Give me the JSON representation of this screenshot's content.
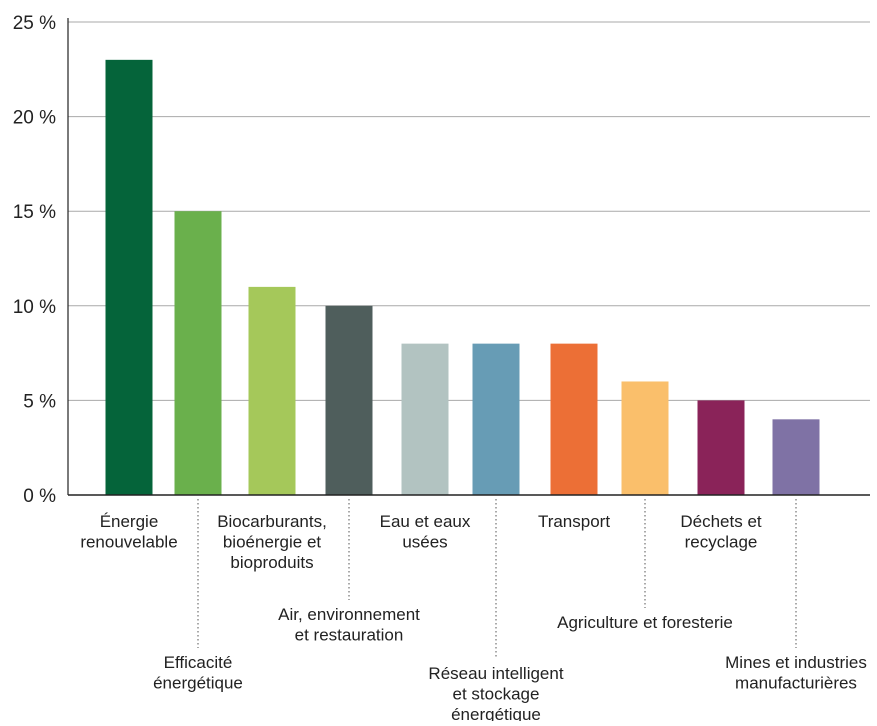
{
  "chart_data": {
    "type": "bar",
    "title": "",
    "xlabel": "",
    "ylabel": "",
    "ylim": [
      0,
      25
    ],
    "y_ticks": [
      0,
      5,
      10,
      15,
      20,
      25
    ],
    "y_tick_labels": [
      "0 %",
      "5 %",
      "10 %",
      "15 %",
      "20 %",
      "25 %"
    ],
    "grid": true,
    "categories": [
      [
        "Énergie",
        "renouvelable"
      ],
      [
        "Efficacité",
        "énergétique"
      ],
      [
        "Biocarburants,",
        "bioénergie et",
        "bioproduits"
      ],
      [
        "Air, environnement",
        "et restauration"
      ],
      [
        "Eau et eaux",
        "usées"
      ],
      [
        "Réseau intelligent",
        "et stockage",
        "énergétique"
      ],
      [
        "Transport"
      ],
      [
        "Agriculture et foresterie"
      ],
      [
        "Déchets et",
        "recyclage"
      ],
      [
        "Mines et industries",
        "manufacturières"
      ]
    ],
    "values": [
      23,
      15,
      11,
      10,
      8,
      8,
      8,
      6,
      5,
      4
    ],
    "colors": [
      "#05643a",
      "#6ab04c",
      "#a5c85a",
      "#4f5e5c",
      "#b2c3c1",
      "#679cb5",
      "#ec6f36",
      "#fabf6b",
      "#8a2359",
      "#7f72a5"
    ],
    "label_rows": [
      "top",
      "low",
      "top",
      "low",
      "top",
      "low",
      "top",
      "low",
      "top",
      "low"
    ]
  }
}
